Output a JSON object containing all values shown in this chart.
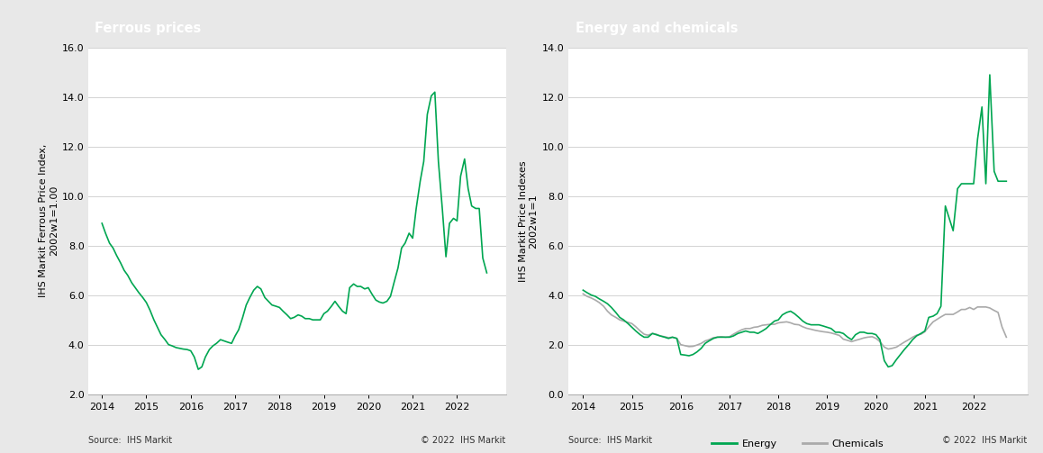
{
  "left_title": "Ferrous prices",
  "right_title": "Energy and chemicals",
  "left_ylabel": "IHS Markit Ferrous Price Index,\n2002w1=1.00",
  "right_ylabel": "IHS Markit Price Indexes\n2002w1=1",
  "left_ylim": [
    2.0,
    16.0
  ],
  "right_ylim": [
    0.0,
    14.0
  ],
  "left_yticks": [
    2.0,
    4.0,
    6.0,
    8.0,
    10.0,
    12.0,
    14.0,
    16.0
  ],
  "right_yticks": [
    0.0,
    2.0,
    4.0,
    6.0,
    8.0,
    10.0,
    12.0,
    14.0
  ],
  "xticks": [
    2014,
    2015,
    2016,
    2017,
    2018,
    2019,
    2020,
    2021,
    2022
  ],
  "xlim": [
    2013.7,
    2023.1
  ],
  "source_text": "Source:  IHS Markit",
  "copyright_text": "© 2022  IHS Markit",
  "header_bg": "#7f7f7f",
  "header_text_color": "#ffffff",
  "line_color_green": "#00A651",
  "line_color_gray": "#aaaaaa",
  "bg_color": "#e8e8e8",
  "plot_bg": "#ffffff",
  "title_fontsize": 10.5,
  "axis_fontsize": 8,
  "label_fontsize": 8,
  "footer_fontsize": 7,
  "ferrous_x": [
    2014.0,
    2014.08,
    2014.17,
    2014.25,
    2014.33,
    2014.42,
    2014.5,
    2014.58,
    2014.67,
    2014.75,
    2014.83,
    2014.92,
    2015.0,
    2015.08,
    2015.17,
    2015.25,
    2015.33,
    2015.42,
    2015.5,
    2015.58,
    2015.67,
    2015.75,
    2015.83,
    2015.92,
    2016.0,
    2016.08,
    2016.17,
    2016.25,
    2016.33,
    2016.42,
    2016.5,
    2016.58,
    2016.67,
    2016.75,
    2016.83,
    2016.92,
    2017.0,
    2017.08,
    2017.17,
    2017.25,
    2017.33,
    2017.42,
    2017.5,
    2017.58,
    2017.67,
    2017.75,
    2017.83,
    2017.92,
    2018.0,
    2018.08,
    2018.17,
    2018.25,
    2018.33,
    2018.42,
    2018.5,
    2018.58,
    2018.67,
    2018.75,
    2018.83,
    2018.92,
    2019.0,
    2019.08,
    2019.17,
    2019.25,
    2019.33,
    2019.42,
    2019.5,
    2019.58,
    2019.67,
    2019.75,
    2019.83,
    2019.92,
    2020.0,
    2020.08,
    2020.17,
    2020.25,
    2020.33,
    2020.42,
    2020.5,
    2020.58,
    2020.67,
    2020.75,
    2020.83,
    2020.92,
    2021.0,
    2021.08,
    2021.17,
    2021.25,
    2021.33,
    2021.42,
    2021.5,
    2021.58,
    2021.67,
    2021.75,
    2021.83,
    2021.92,
    2022.0,
    2022.08,
    2022.17,
    2022.25,
    2022.33,
    2022.42,
    2022.5,
    2022.58,
    2022.67
  ],
  "ferrous_y": [
    8.9,
    8.5,
    8.1,
    7.9,
    7.6,
    7.3,
    7.0,
    6.8,
    6.5,
    6.3,
    6.1,
    5.9,
    5.7,
    5.4,
    5.0,
    4.7,
    4.4,
    4.2,
    4.0,
    3.95,
    3.88,
    3.85,
    3.82,
    3.8,
    3.75,
    3.5,
    3.0,
    3.1,
    3.5,
    3.8,
    3.95,
    4.05,
    4.2,
    4.15,
    4.1,
    4.05,
    4.35,
    4.6,
    5.1,
    5.6,
    5.9,
    6.2,
    6.35,
    6.25,
    5.9,
    5.75,
    5.6,
    5.55,
    5.5,
    5.35,
    5.2,
    5.05,
    5.1,
    5.2,
    5.15,
    5.05,
    5.05,
    5.0,
    5.0,
    5.0,
    5.25,
    5.35,
    5.55,
    5.75,
    5.55,
    5.35,
    5.25,
    6.3,
    6.45,
    6.35,
    6.35,
    6.25,
    6.3,
    6.05,
    5.8,
    5.72,
    5.68,
    5.75,
    5.95,
    6.5,
    7.1,
    7.9,
    8.1,
    8.5,
    8.3,
    9.5,
    10.6,
    11.4,
    13.3,
    14.05,
    14.2,
    11.4,
    9.45,
    7.55,
    8.9,
    9.1,
    9.0,
    10.8,
    11.5,
    10.3,
    9.6,
    9.5,
    9.5,
    7.5,
    6.9
  ],
  "energy_x": [
    2014.0,
    2014.08,
    2014.17,
    2014.25,
    2014.33,
    2014.42,
    2014.5,
    2014.58,
    2014.67,
    2014.75,
    2014.83,
    2014.92,
    2015.0,
    2015.08,
    2015.17,
    2015.25,
    2015.33,
    2015.42,
    2015.5,
    2015.58,
    2015.67,
    2015.75,
    2015.83,
    2015.92,
    2016.0,
    2016.08,
    2016.17,
    2016.25,
    2016.33,
    2016.42,
    2016.5,
    2016.58,
    2016.67,
    2016.75,
    2016.83,
    2016.92,
    2017.0,
    2017.08,
    2017.17,
    2017.25,
    2017.33,
    2017.42,
    2017.5,
    2017.58,
    2017.67,
    2017.75,
    2017.83,
    2017.92,
    2018.0,
    2018.08,
    2018.17,
    2018.25,
    2018.33,
    2018.42,
    2018.5,
    2018.58,
    2018.67,
    2018.75,
    2018.83,
    2018.92,
    2019.0,
    2019.08,
    2019.17,
    2019.25,
    2019.33,
    2019.42,
    2019.5,
    2019.58,
    2019.67,
    2019.75,
    2019.83,
    2019.92,
    2020.0,
    2020.08,
    2020.17,
    2020.25,
    2020.33,
    2020.42,
    2020.5,
    2020.58,
    2020.67,
    2020.75,
    2020.83,
    2020.92,
    2021.0,
    2021.08,
    2021.17,
    2021.25,
    2021.33,
    2021.42,
    2021.5,
    2021.58,
    2021.67,
    2021.75,
    2021.83,
    2021.92,
    2022.0,
    2022.08,
    2022.17,
    2022.25,
    2022.33,
    2022.42,
    2022.5,
    2022.58,
    2022.67
  ],
  "energy_y": [
    4.2,
    4.1,
    4.0,
    3.95,
    3.85,
    3.75,
    3.65,
    3.5,
    3.3,
    3.1,
    3.0,
    2.85,
    2.7,
    2.55,
    2.4,
    2.3,
    2.3,
    2.45,
    2.4,
    2.35,
    2.3,
    2.25,
    2.3,
    2.25,
    1.6,
    1.58,
    1.55,
    1.6,
    1.7,
    1.85,
    2.05,
    2.15,
    2.25,
    2.3,
    2.3,
    2.3,
    2.3,
    2.35,
    2.45,
    2.5,
    2.55,
    2.5,
    2.5,
    2.45,
    2.55,
    2.65,
    2.8,
    2.95,
    3.0,
    3.2,
    3.3,
    3.35,
    3.25,
    3.1,
    2.95,
    2.85,
    2.8,
    2.8,
    2.8,
    2.75,
    2.7,
    2.65,
    2.5,
    2.5,
    2.45,
    2.3,
    2.2,
    2.4,
    2.5,
    2.5,
    2.45,
    2.45,
    2.4,
    2.2,
    1.35,
    1.1,
    1.15,
    1.4,
    1.6,
    1.8,
    2.0,
    2.2,
    2.35,
    2.45,
    2.55,
    3.1,
    3.15,
    3.25,
    3.55,
    7.6,
    7.1,
    6.6,
    8.3,
    8.5,
    8.5,
    8.5,
    8.5,
    10.3,
    11.6,
    8.5,
    12.9,
    9.0,
    8.6,
    8.6,
    8.6
  ],
  "chemicals_x": [
    2014.0,
    2014.08,
    2014.17,
    2014.25,
    2014.33,
    2014.42,
    2014.5,
    2014.58,
    2014.67,
    2014.75,
    2014.83,
    2014.92,
    2015.0,
    2015.08,
    2015.17,
    2015.25,
    2015.33,
    2015.42,
    2015.5,
    2015.58,
    2015.67,
    2015.75,
    2015.83,
    2015.92,
    2016.0,
    2016.08,
    2016.17,
    2016.25,
    2016.33,
    2016.42,
    2016.5,
    2016.58,
    2016.67,
    2016.75,
    2016.83,
    2016.92,
    2017.0,
    2017.08,
    2017.17,
    2017.25,
    2017.33,
    2017.42,
    2017.5,
    2017.58,
    2017.67,
    2017.75,
    2017.83,
    2017.92,
    2018.0,
    2018.08,
    2018.17,
    2018.25,
    2018.33,
    2018.42,
    2018.5,
    2018.58,
    2018.67,
    2018.75,
    2018.83,
    2018.92,
    2019.0,
    2019.08,
    2019.17,
    2019.25,
    2019.33,
    2019.42,
    2019.5,
    2019.58,
    2019.67,
    2019.75,
    2019.83,
    2019.92,
    2020.0,
    2020.08,
    2020.17,
    2020.25,
    2020.33,
    2020.42,
    2020.5,
    2020.58,
    2020.67,
    2020.75,
    2020.83,
    2020.92,
    2021.0,
    2021.08,
    2021.17,
    2021.25,
    2021.33,
    2021.42,
    2021.5,
    2021.58,
    2021.67,
    2021.75,
    2021.83,
    2021.92,
    2022.0,
    2022.08,
    2022.17,
    2022.25,
    2022.33,
    2022.42,
    2022.5,
    2022.58,
    2022.67
  ],
  "chemicals_y": [
    4.05,
    3.95,
    3.88,
    3.8,
    3.7,
    3.55,
    3.35,
    3.2,
    3.1,
    3.0,
    2.95,
    2.9,
    2.85,
    2.72,
    2.55,
    2.42,
    2.38,
    2.45,
    2.42,
    2.35,
    2.32,
    2.28,
    2.3,
    2.25,
    2.0,
    1.96,
    1.92,
    1.93,
    1.98,
    2.05,
    2.15,
    2.2,
    2.28,
    2.3,
    2.32,
    2.3,
    2.32,
    2.42,
    2.52,
    2.6,
    2.65,
    2.65,
    2.7,
    2.72,
    2.78,
    2.8,
    2.82,
    2.82,
    2.88,
    2.9,
    2.92,
    2.88,
    2.82,
    2.8,
    2.72,
    2.66,
    2.62,
    2.58,
    2.55,
    2.52,
    2.5,
    2.47,
    2.42,
    2.37,
    2.22,
    2.17,
    2.12,
    2.17,
    2.22,
    2.27,
    2.3,
    2.32,
    2.25,
    2.12,
    1.9,
    1.82,
    1.85,
    1.9,
    2.0,
    2.1,
    2.2,
    2.3,
    2.38,
    2.42,
    2.52,
    2.72,
    2.92,
    3.02,
    3.12,
    3.22,
    3.22,
    3.22,
    3.32,
    3.42,
    3.42,
    3.5,
    3.42,
    3.52,
    3.52,
    3.52,
    3.48,
    3.38,
    3.3,
    2.72,
    2.3
  ]
}
